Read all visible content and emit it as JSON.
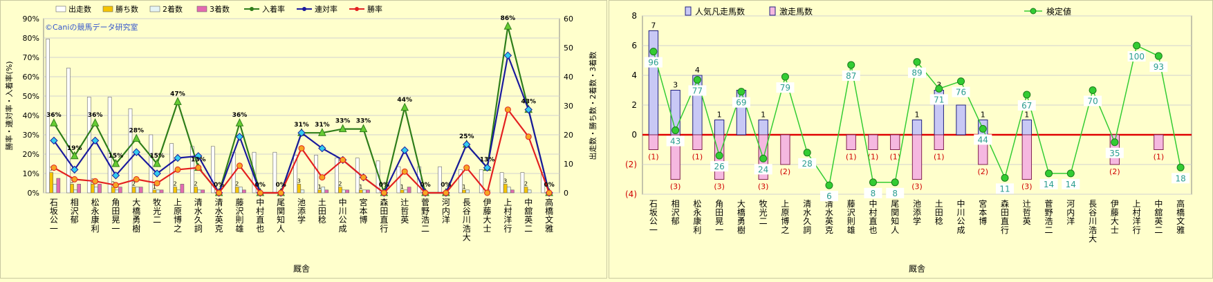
{
  "chart_data": [
    {
      "type": "bar",
      "title": "",
      "watermark": "©Caniの競馬データ研究室",
      "xlabel": "厩舎",
      "ylabel_left": "勝率・連対率・入着率(%)",
      "ylabel_right": "出走数・勝ち数・2着数・3着数",
      "categories": [
        "石坂 公一",
        "相沢 郁",
        "松永 康利",
        "角田 晃一",
        "大橋 勇樹",
        "牧 光二",
        "上原 博之",
        "清水 久詞",
        "清水 英克",
        "藤沢 則雄",
        "中村 直也",
        "尾関 知人",
        "池添 学",
        "土田 稔",
        "中川 公成",
        "宮本 博",
        "森田 直行",
        "辻 哲英",
        "菅野 浩二",
        "河内 洋",
        "長谷川 浩大",
        "伊藤 大士",
        "上村 洋行",
        "中舘 英二",
        "高橋 文雅"
      ],
      "left_axis": {
        "min": 0,
        "max": 90,
        "step": 10,
        "tick_suffix": "%"
      },
      "right_axis": {
        "min": 0,
        "max": 60,
        "step": 10
      },
      "bar_series": [
        {
          "name": "出走数",
          "color": "#ffffff",
          "values": [
            53,
            43,
            33,
            33,
            29,
            20,
            17,
            16,
            16,
            14,
            14,
            14,
            13,
            13,
            12,
            12,
            11,
            9,
            9,
            9,
            8,
            8,
            7,
            7,
            7
          ]
        },
        {
          "name": "勝ち数",
          "color": "#f5c400",
          "values": [
            7,
            3,
            3,
            2,
            2,
            1,
            2,
            2,
            0,
            2,
            0,
            0,
            3,
            1,
            2,
            1,
            0,
            1,
            0,
            0,
            1,
            0,
            3,
            2,
            0
          ]
        },
        {
          "name": "2着数",
          "color": "#ffffff",
          "values": [
            3,
            1,
            2,
            1,
            2,
            1,
            1,
            1,
            0,
            2,
            0,
            0,
            1,
            2,
            1,
            1,
            0,
            1,
            0,
            0,
            1,
            1,
            2,
            1,
            0
          ]
        },
        {
          "name": "3着数",
          "color": "#e36ab0",
          "values": [
            5,
            3,
            3,
            2,
            2,
            1,
            3,
            1,
            0,
            1,
            0,
            0,
            0,
            1,
            1,
            1,
            0,
            2,
            0,
            0,
            0,
            0,
            1,
            0,
            0
          ]
        }
      ],
      "line_series": [
        {
          "name": "入着率",
          "color": "#2e7d1a",
          "marker": "triangle",
          "values": [
            36,
            19,
            36,
            15,
            28,
            15,
            47,
            13,
            0,
            36,
            0,
            0,
            31,
            31,
            33,
            33,
            0,
            44,
            0,
            0,
            25,
            13,
            86,
            43,
            0
          ]
        },
        {
          "name": "連対率",
          "color": "#1a1a9e",
          "marker": "diamond",
          "values": [
            27,
            12,
            27,
            9,
            21,
            10,
            18,
            19,
            0,
            29,
            0,
            0,
            31,
            23,
            17,
            8,
            0,
            22,
            0,
            0,
            25,
            13,
            71,
            43,
            0
          ]
        },
        {
          "name": "勝率",
          "color": "#e32020",
          "marker": "circle",
          "values": [
            13,
            7,
            6,
            4,
            7,
            5,
            12,
            13,
            0,
            14,
            0,
            0,
            23,
            8,
            17,
            8,
            0,
            11,
            0,
            0,
            13,
            0,
            43,
            29,
            0
          ]
        }
      ],
      "data_labels": {
        "入着率": [
          "36%",
          "19%",
          "36%",
          "15%",
          "28%",
          "15%",
          "47%",
          "13%",
          "0%",
          "36%",
          "0%",
          "0%",
          "31%",
          "31%",
          "33%",
          "33%",
          "0%",
          "44%",
          "0%",
          "0%",
          "25%",
          "13%",
          "86%",
          "43%",
          "0%"
        ],
        "wins": [
          "7",
          "3",
          "3",
          "2",
          "2",
          "1",
          "2",
          "2",
          "",
          "2",
          "",
          "",
          "3",
          "1",
          "2",
          "1",
          "",
          "1",
          "",
          "",
          "1",
          "",
          "3",
          "2",
          ""
        ]
      }
    },
    {
      "type": "bar",
      "title": "",
      "xlabel": "厩舎",
      "ylim": [
        -4,
        8
      ],
      "y_ticks": [
        "(4)",
        "(2)",
        "0",
        "2",
        "4",
        "6",
        "8"
      ],
      "categories": [
        "石坂 公一",
        "相沢 郁",
        "松永 康利",
        "角田 晃一",
        "大橋 勇樹",
        "牧 光二",
        "上原 博之",
        "清水 久詞",
        "清水 英克",
        "藤沢 則雄",
        "中村 直也",
        "尾関 知人",
        "池添 学",
        "土田 稔",
        "中川 公成",
        "宮本 博",
        "森田 直行",
        "辻 哲英",
        "菅野 浩二",
        "河内 洋",
        "長谷川 浩大",
        "伊藤 大士",
        "上村 洋行",
        "中舘 英二",
        "高橋 文雅"
      ],
      "bar_series": [
        {
          "name": "人気凡走馬数",
          "color": "#3030c0",
          "values": [
            7,
            3,
            4,
            1,
            3,
            1,
            0,
            0,
            0,
            0,
            0,
            0,
            1,
            3,
            2,
            1,
            0,
            1,
            0,
            0,
            0,
            0,
            0,
            0,
            0
          ],
          "labels": [
            "7",
            "3",
            "4",
            "1",
            "",
            "1",
            "",
            "",
            "",
            "",
            "",
            "",
            "1",
            "3",
            "",
            "1",
            "",
            "1",
            "",
            "",
            "",
            "",
            "",
            "",
            ""
          ]
        },
        {
          "name": "激走馬数",
          "color": "#e02090",
          "values": [
            -1,
            -3,
            -1,
            -3,
            0,
            -3,
            -2,
            0,
            0,
            -1,
            -1,
            -1,
            -3,
            -1,
            0,
            -2,
            0,
            -3,
            0,
            0,
            0,
            -2,
            0,
            -1,
            0
          ],
          "labels": [
            "(1)",
            "(3)",
            "(1)",
            "(3)",
            "",
            "(3)",
            "(2)",
            "",
            "",
            "(1)",
            "(1)",
            "(1)",
            "(3)",
            "(1)",
            "",
            "(2)",
            "",
            "(3)",
            "",
            "",
            "",
            "(2)",
            "",
            "(1)",
            ""
          ]
        }
      ],
      "line_series": [
        {
          "name": "検定値",
          "color": "#33cc33",
          "marker": "circle",
          "values": [
            96,
            43,
            77,
            26,
            69,
            24,
            79,
            28,
            6,
            87,
            8,
            8,
            89,
            71,
            76,
            44,
            11,
            67,
            14,
            14,
            70,
            35,
            100,
            93,
            18
          ]
        }
      ],
      "line_scale_note": "検定値 plotted on 0–100 scale mapped to the axis range"
    }
  ]
}
